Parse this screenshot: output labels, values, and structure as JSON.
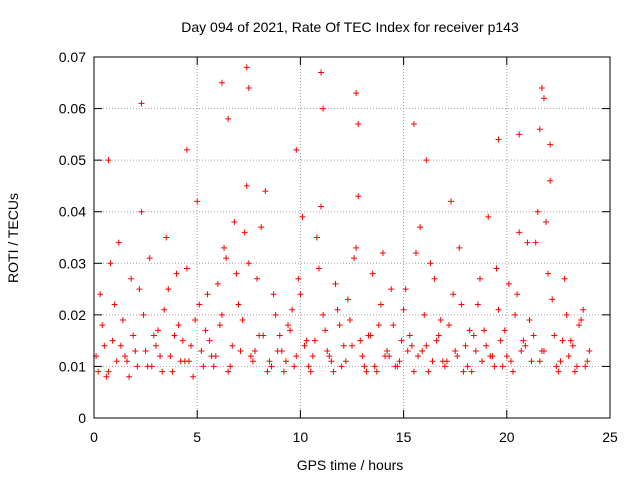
{
  "chart_data": {
    "type": "scatter",
    "title": "Day 094 of 2021, Rate Of TEC Index for receiver p143",
    "xlabel": "GPS time / hours",
    "ylabel": "ROTI / TECUs",
    "xlim": [
      0,
      25
    ],
    "ylim": [
      0,
      0.07
    ],
    "xticks": [
      "0",
      "5",
      "10",
      "15",
      "20",
      "25"
    ],
    "yticks": [
      "0",
      "0.01",
      "0.02",
      "0.03",
      "0.04",
      "0.05",
      "0.06",
      "0.07"
    ],
    "grid": true,
    "marker": "plus",
    "color": "#ff0000",
    "series": [
      {
        "x": [
          0.1,
          0.4,
          0.7,
          1.0,
          1.3,
          1.6,
          1.9,
          2.2,
          2.5,
          2.8,
          3.1,
          3.4,
          3.7,
          4.0,
          4.3,
          4.6,
          4.9,
          5.2,
          5.5,
          5.8,
          6.1,
          6.4,
          6.7,
          7.0,
          7.3,
          7.6,
          7.9,
          8.2,
          8.5,
          8.8,
          9.1,
          9.4,
          9.7,
          10.0,
          10.3,
          10.6,
          10.9,
          11.2,
          11.5,
          11.8,
          12.1,
          12.4,
          12.7,
          13.0,
          13.3,
          13.6,
          13.9,
          14.2,
          14.5,
          14.8,
          15.1,
          15.4,
          15.7,
          16.0,
          16.3,
          16.6,
          16.9,
          17.2,
          17.5,
          17.8,
          18.1,
          18.4,
          18.7,
          19.0,
          19.3,
          19.6,
          19.9,
          20.2,
          20.5,
          20.8,
          21.1,
          21.4,
          21.7,
          22.0,
          22.3,
          22.6,
          22.9,
          23.2,
          23.5,
          23.8,
          0.2,
          0.5,
          0.8,
          1.1,
          1.4,
          1.7,
          2.0,
          2.3,
          2.6,
          2.9,
          3.2,
          3.5,
          3.8,
          4.1,
          4.4,
          4.7,
          5.0,
          5.3,
          5.6,
          5.9,
          6.2,
          6.5,
          6.8,
          7.1,
          7.4,
          7.7,
          8.0,
          8.3,
          8.6,
          8.9,
          9.2,
          9.5,
          9.8,
          10.1,
          10.4,
          10.7,
          11.0,
          11.3,
          11.6,
          11.9,
          12.2,
          12.5,
          12.8,
          13.1,
          13.4,
          13.7,
          14.0,
          14.3,
          14.6,
          14.9,
          15.2,
          15.5,
          15.8,
          16.1,
          16.4,
          16.7,
          17.0,
          17.3,
          17.6,
          17.9,
          18.2,
          18.5,
          18.8,
          19.1,
          19.4,
          19.7,
          20.0,
          20.3,
          20.6,
          20.9,
          21.2,
          21.5,
          21.8,
          22.1,
          22.4,
          22.7,
          23.0,
          23.3,
          23.6,
          23.9,
          0.3,
          0.6,
          0.9,
          1.2,
          1.5,
          1.8,
          2.1,
          2.4,
          2.7,
          3.0,
          3.3,
          3.6,
          3.9,
          4.2,
          4.5,
          4.8,
          5.1,
          5.4,
          5.7,
          6.0,
          6.3,
          6.6,
          6.9,
          7.2,
          7.5,
          7.8,
          8.1,
          8.4,
          8.7,
          9.0,
          9.3,
          9.6,
          9.9,
          10.2,
          10.5,
          10.8,
          11.1,
          11.4,
          11.7,
          12.0,
          12.3,
          12.6,
          12.9,
          13.2,
          13.5,
          13.8,
          14.1,
          14.4,
          14.7,
          15.0,
          15.3,
          15.6,
          15.9,
          16.2,
          16.5,
          16.8,
          17.1,
          17.4,
          17.7,
          18.0,
          18.3,
          18.6,
          18.9,
          19.2,
          19.5,
          19.8,
          20.1,
          20.4,
          20.7,
          21.0,
          21.3,
          21.6,
          21.9,
          22.2,
          22.5,
          22.8,
          23.1,
          23.4,
          23.7,
          24.0,
          0.7,
          2.3,
          4.5,
          6.2,
          6.5,
          7.4,
          7.5,
          9.8,
          11.0,
          11.1,
          12.7,
          12.8,
          15.5,
          16.1,
          19.6,
          20.6,
          21.6,
          21.7,
          21.8,
          22.1
        ],
        "y": [
          0.012,
          0.018,
          0.009,
          0.022,
          0.014,
          0.011,
          0.016,
          0.025,
          0.013,
          0.01,
          0.017,
          0.021,
          0.012,
          0.028,
          0.015,
          0.011,
          0.019,
          0.013,
          0.024,
          0.01,
          0.018,
          0.031,
          0.014,
          0.022,
          0.036,
          0.012,
          0.027,
          0.016,
          0.011,
          0.02,
          0.013,
          0.018,
          0.01,
          0.024,
          0.015,
          0.012,
          0.029,
          0.017,
          0.011,
          0.021,
          0.014,
          0.019,
          0.033,
          0.012,
          0.016,
          0.01,
          0.022,
          0.013,
          0.018,
          0.011,
          0.025,
          0.014,
          0.012,
          0.02,
          0.03,
          0.015,
          0.011,
          0.018,
          0.013,
          0.022,
          0.01,
          0.016,
          0.027,
          0.014,
          0.012,
          0.021,
          0.017,
          0.011,
          0.024,
          0.015,
          0.019,
          0.034,
          0.013,
          0.028,
          0.016,
          0.011,
          0.02,
          0.014,
          0.018,
          0.01,
          0.009,
          0.014,
          0.03,
          0.011,
          0.019,
          0.008,
          0.013,
          0.04,
          0.01,
          0.016,
          0.012,
          0.035,
          0.009,
          0.018,
          0.011,
          0.014,
          0.042,
          0.01,
          0.015,
          0.012,
          0.02,
          0.009,
          0.038,
          0.013,
          0.045,
          0.011,
          0.016,
          0.044,
          0.01,
          0.013,
          0.009,
          0.017,
          0.012,
          0.039,
          0.01,
          0.015,
          0.041,
          0.013,
          0.009,
          0.018,
          0.011,
          0.014,
          0.043,
          0.01,
          0.016,
          0.009,
          0.032,
          0.012,
          0.01,
          0.015,
          0.013,
          0.009,
          0.037,
          0.014,
          0.011,
          0.016,
          0.01,
          0.042,
          0.012,
          0.009,
          0.017,
          0.013,
          0.011,
          0.039,
          0.01,
          0.015,
          0.012,
          0.009,
          0.036,
          0.014,
          0.011,
          0.04,
          0.013,
          0.046,
          0.01,
          0.015,
          0.012,
          0.009,
          0.019,
          0.011,
          0.024,
          0.008,
          0.015,
          0.034,
          0.012,
          0.027,
          0.01,
          0.02,
          0.031,
          0.014,
          0.009,
          0.025,
          0.016,
          0.011,
          0.029,
          0.008,
          0.022,
          0.017,
          0.012,
          0.026,
          0.033,
          0.01,
          0.028,
          0.019,
          0.03,
          0.013,
          0.037,
          0.009,
          0.024,
          0.016,
          0.011,
          0.021,
          0.027,
          0.014,
          0.009,
          0.035,
          0.02,
          0.012,
          0.026,
          0.01,
          0.023,
          0.031,
          0.015,
          0.009,
          0.028,
          0.018,
          0.012,
          0.025,
          0.01,
          0.021,
          0.016,
          0.032,
          0.013,
          0.009,
          0.027,
          0.019,
          0.011,
          0.024,
          0.033,
          0.014,
          0.009,
          0.022,
          0.017,
          0.012,
          0.029,
          0.01,
          0.026,
          0.02,
          0.013,
          0.034,
          0.016,
          0.011,
          0.038,
          0.023,
          0.009,
          0.027,
          0.015,
          0.01,
          0.021,
          0.013,
          0.05,
          0.061,
          0.052,
          0.065,
          0.058,
          0.068,
          0.064,
          0.052,
          0.067,
          0.06,
          0.063,
          0.057,
          0.057,
          0.05,
          0.054,
          0.055,
          0.056,
          0.064,
          0.062,
          0.053
        ]
      }
    ]
  }
}
